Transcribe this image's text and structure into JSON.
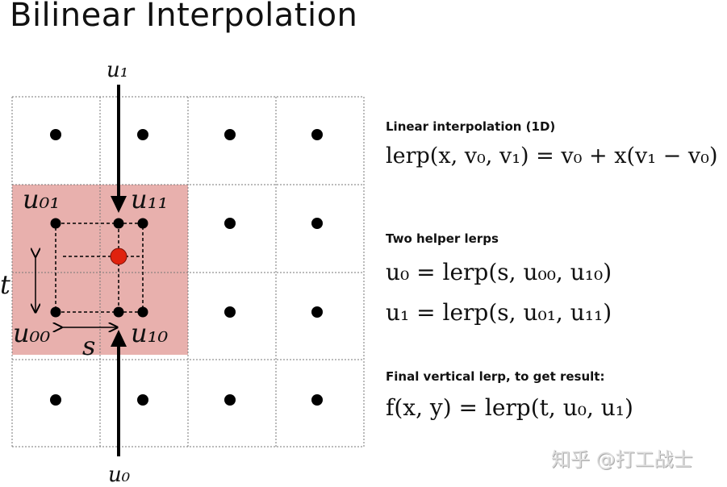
{
  "title": "Bilinear Interpolation",
  "diagram": {
    "labels": {
      "u1_top": "u₁",
      "u0_bottom": "u₀",
      "u01": "u₀₁",
      "u11": "u₁₁",
      "u00": "u₀₀",
      "u10": "u₁₀",
      "t": "t",
      "s": "s"
    },
    "colors": {
      "highlight": "#e8b0ad",
      "sample_point": "#e0220e",
      "dots": "#000000"
    }
  },
  "sections": [
    {
      "heading": "Linear interpolation (1D)",
      "formulas": [
        "lerp(x, v₀, v₁) = v₀ + x(v₁ − v₀)"
      ]
    },
    {
      "heading": "Two helper lerps",
      "formulas": [
        "u₀ = lerp(s, u₀₀, u₁₀)",
        "u₁ = lerp(s, u₀₁, u₁₁)"
      ]
    },
    {
      "heading": "Final vertical lerp, to get result:",
      "formulas": [
        "f(x, y) = lerp(t, u₀, u₁)"
      ]
    }
  ],
  "watermark": "知乎 @打工战士"
}
